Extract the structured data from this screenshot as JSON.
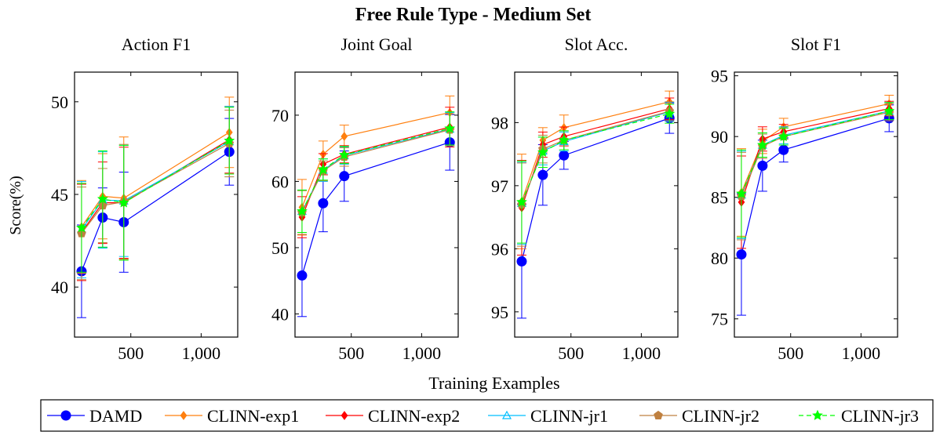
{
  "figure": {
    "title": "Free Rule Type - Medium Set",
    "ylabel": "Score(%)",
    "xlabel": "Training Examples"
  },
  "legend": [
    {
      "name": "DAMD",
      "color": "#0000ff",
      "marker": "circle",
      "dash": "solid"
    },
    {
      "name": "CLINN-exp1",
      "color": "#ff7f0e",
      "marker": "diamond",
      "dash": "solid"
    },
    {
      "name": "CLINN-exp2",
      "color": "#ff0000",
      "marker": "diamond",
      "dash": "solid"
    },
    {
      "name": "CLINN-jr1",
      "color": "#00bfff",
      "marker": "triangle",
      "dash": "solid"
    },
    {
      "name": "CLINN-jr2",
      "color": "#bf8040",
      "marker": "pentagon",
      "dash": "solid"
    },
    {
      "name": "CLINN-jr3",
      "color": "#00ff00",
      "marker": "star",
      "dash": "dashed"
    }
  ],
  "chart_data": [
    {
      "type": "line",
      "title": "Action F1",
      "x": [
        150,
        300,
        450,
        1200
      ],
      "xticks": [
        500,
        1000
      ],
      "xticklabels": [
        "500",
        "1,000"
      ],
      "xlim": [
        100,
        1260
      ],
      "ylim": [
        37.3,
        51.6
      ],
      "yticks": [
        40,
        45,
        50
      ],
      "yticklabels": [
        "40",
        "45",
        "50"
      ],
      "series": [
        {
          "name": "DAMD",
          "values": [
            40.85,
            43.75,
            43.5,
            47.3
          ],
          "err": [
            2.5,
            1.6,
            2.7,
            1.8
          ]
        },
        {
          "name": "CLINN-exp1",
          "values": [
            43.25,
            44.9,
            44.8,
            48.35
          ],
          "err": [
            2.5,
            2.3,
            3.3,
            1.9
          ]
        },
        {
          "name": "CLINN-exp2",
          "values": [
            42.95,
            44.55,
            44.55,
            47.95
          ],
          "err": [
            2.6,
            2.2,
            3.0,
            1.8
          ]
        },
        {
          "name": "CLINN-jr1",
          "values": [
            43.1,
            44.7,
            44.65,
            47.85
          ],
          "err": [
            2.6,
            2.6,
            3.0,
            1.9
          ]
        },
        {
          "name": "CLINN-jr2",
          "values": [
            42.9,
            44.4,
            44.6,
            47.75
          ],
          "err": [
            2.5,
            2.0,
            3.1,
            1.8
          ]
        },
        {
          "name": "CLINN-jr3",
          "values": [
            43.2,
            44.75,
            44.55,
            47.9
          ],
          "err": [
            2.4,
            2.6,
            3.1,
            1.8
          ]
        }
      ]
    },
    {
      "type": "line",
      "title": "Joint Goal",
      "x": [
        150,
        300,
        450,
        1200
      ],
      "xticks": [
        500,
        1000
      ],
      "xticklabels": [
        "500",
        "1,000"
      ],
      "xlim": [
        100,
        1260
      ],
      "ylim": [
        36.5,
        76.5
      ],
      "yticks": [
        40,
        50,
        60,
        70
      ],
      "yticklabels": [
        "40",
        "50",
        "60",
        "70"
      ],
      "series": [
        {
          "name": "DAMD",
          "values": [
            45.8,
            56.7,
            60.8,
            65.9
          ],
          "err": [
            6.2,
            4.3,
            3.8,
            4.2
          ]
        },
        {
          "name": "CLINN-exp1",
          "values": [
            56.1,
            64.1,
            66.8,
            70.4
          ],
          "err": [
            4.2,
            2.0,
            1.7,
            2.5
          ]
        },
        {
          "name": "CLINN-exp2",
          "values": [
            54.6,
            62.6,
            64.1,
            68.2
          ],
          "err": [
            3.1,
            1.6,
            1.3,
            3.0
          ]
        },
        {
          "name": "CLINN-jr1",
          "values": [
            55.5,
            61.7,
            63.9,
            67.9
          ],
          "err": [
            3.2,
            1.7,
            1.3,
            2.5
          ]
        },
        {
          "name": "CLINN-jr2",
          "values": [
            55.3,
            61.6,
            63.7,
            67.8
          ],
          "err": [
            3.3,
            1.5,
            1.4,
            2.4
          ]
        },
        {
          "name": "CLINN-jr3",
          "values": [
            55.5,
            61.8,
            64.0,
            68.0
          ],
          "err": [
            3.2,
            1.6,
            1.3,
            2.5
          ]
        }
      ]
    },
    {
      "type": "line",
      "title": "Slot Acc.",
      "x": [
        150,
        300,
        450,
        1200
      ],
      "xticks": [
        500,
        1000
      ],
      "xticklabels": [
        "500",
        "1,000"
      ],
      "xlim": [
        100,
        1260
      ],
      "ylim": [
        94.6,
        98.8
      ],
      "yticks": [
        95,
        96,
        97,
        98
      ],
      "yticklabels": [
        "95",
        "96",
        "97",
        "98"
      ],
      "series": [
        {
          "name": "DAMD",
          "values": [
            95.8,
            97.17,
            97.48,
            98.07
          ],
          "err": [
            0.9,
            0.48,
            0.22,
            0.24
          ]
        },
        {
          "name": "CLINN-exp1",
          "values": [
            96.75,
            97.72,
            97.92,
            98.33
          ],
          "err": [
            0.75,
            0.2,
            0.2,
            0.17
          ]
        },
        {
          "name": "CLINN-exp2",
          "values": [
            96.65,
            97.65,
            97.78,
            98.22
          ],
          "err": [
            0.75,
            0.2,
            0.15,
            0.17
          ]
        },
        {
          "name": "CLINN-jr1",
          "values": [
            96.72,
            97.55,
            97.7,
            98.17
          ],
          "err": [
            0.65,
            0.22,
            0.15,
            0.15
          ]
        },
        {
          "name": "CLINN-jr2",
          "values": [
            96.7,
            97.58,
            97.72,
            98.18
          ],
          "err": [
            0.66,
            0.22,
            0.15,
            0.15
          ]
        },
        {
          "name": "CLINN-jr3",
          "values": [
            96.74,
            97.53,
            97.72,
            98.14
          ],
          "err": [
            0.65,
            0.24,
            0.15,
            0.15
          ]
        }
      ]
    },
    {
      "type": "line",
      "title": "Slot F1",
      "x": [
        150,
        300,
        450,
        1200
      ],
      "xticks": [
        500,
        1000
      ],
      "xticklabels": [
        "500",
        "1,000"
      ],
      "xlim": [
        100,
        1260
      ],
      "ylim": [
        73.5,
        95.3
      ],
      "yticks": [
        75,
        80,
        85,
        90,
        95
      ],
      "yticklabels": [
        "75",
        "80",
        "85",
        "90",
        "95"
      ],
      "series": [
        {
          "name": "DAMD",
          "values": [
            80.3,
            87.6,
            88.9,
            91.5
          ],
          "err": [
            5.0,
            2.1,
            1.0,
            1.1
          ]
        },
        {
          "name": "CLINN-exp1",
          "values": [
            85.4,
            89.6,
            90.8,
            92.7
          ],
          "err": [
            3.6,
            1.0,
            0.7,
            0.7
          ]
        },
        {
          "name": "CLINN-exp2",
          "values": [
            84.6,
            89.8,
            90.4,
            92.3
          ],
          "err": [
            3.8,
            1.0,
            0.6,
            0.6
          ]
        },
        {
          "name": "CLINN-jr1",
          "values": [
            85.2,
            89.3,
            90.1,
            92.1
          ],
          "err": [
            3.6,
            1.0,
            0.7,
            0.7
          ]
        },
        {
          "name": "CLINN-jr2",
          "values": [
            85.1,
            89.2,
            90.0,
            92.0
          ],
          "err": [
            3.6,
            1.0,
            0.7,
            0.7
          ]
        },
        {
          "name": "CLINN-jr3",
          "values": [
            85.3,
            89.3,
            90.0,
            92.1
          ],
          "err": [
            3.6,
            1.0,
            0.7,
            0.7
          ]
        }
      ]
    }
  ]
}
